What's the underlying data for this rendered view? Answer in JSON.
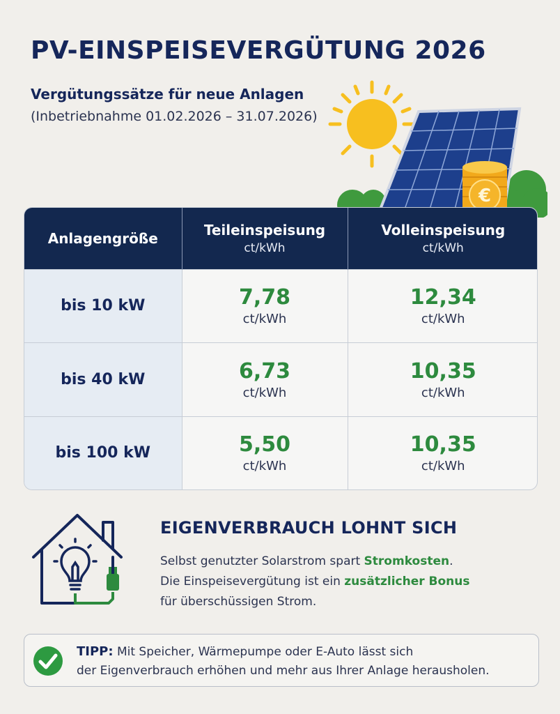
{
  "header": {
    "title": "PV-EINSPEISEVERGÜTUNG 2026",
    "subtitle": "Vergütungssätze für neue Anlagen",
    "dateline": "(Inbetriebnahme 01.02.2026 – 31.07.2026)"
  },
  "table": {
    "col1": "Anlagengröße",
    "col2": "Teileinspeisung",
    "col2_unit": "ct/kWh",
    "col3": "Volleinspeisung",
    "col3_unit": "ct/kWh",
    "rows": [
      {
        "size": "bis 10 kW",
        "teil": "7,78",
        "teil_unit": "ct/kWh",
        "voll": "12,34",
        "voll_unit": "ct/kWh"
      },
      {
        "size": "bis 40 kW",
        "teil": "6,73",
        "teil_unit": "ct/kWh",
        "voll": "10,35",
        "voll_unit": "ct/kWh"
      },
      {
        "size": "bis 100 kW",
        "teil": "5,50",
        "teil_unit": "ct/kWh",
        "voll": "10,35",
        "voll_unit": "ct/kWh"
      }
    ]
  },
  "eigenverbrauch": {
    "title": "EIGENVERBRAUCH LOHNT SICH",
    "line1_pre": "Selbst genutzter Solarstrom spart ",
    "line1_hl": "Stromkosten",
    "line1_post": ".",
    "line2_pre": "Die Einspeisevergütung ist ein ",
    "line2_hl": "zusätzlicher Bonus",
    "line3": "für überschüssigen Strom."
  },
  "tip": {
    "label": "TIPP:",
    "line1": " Mit Speicher, Wärmepumpe oder E-Auto lässt sich",
    "line2": "der Eigenverbrauch erhöhen und mehr aus Ihrer Anlage herausholen."
  },
  "icons": {
    "hero": "sun-solar-panel-coins-icon",
    "house": "house-lightbulb-plug-icon",
    "check": "check-circle-icon",
    "coin_symbol": "€"
  },
  "colors": {
    "navy": "#13284f",
    "green": "#2d8a3e",
    "sun": "#f7bf1f",
    "coin": "#f2a91b"
  }
}
